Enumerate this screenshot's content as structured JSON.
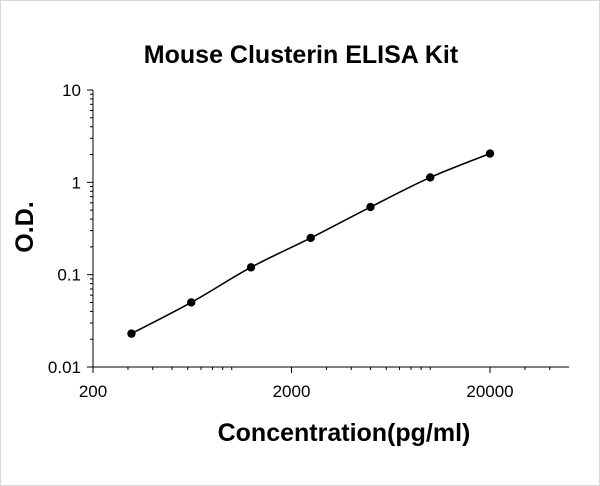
{
  "chart_data": {
    "type": "line",
    "title": "Mouse Clusterin ELISA Kit",
    "xlabel": "Concentration(pg/ml)",
    "ylabel": "O.D.",
    "xscale": "log",
    "yscale": "log",
    "xlim": [
      200,
      50000
    ],
    "ylim": [
      0.01,
      10
    ],
    "x_ticks": [
      {
        "value": 200,
        "label": "200"
      },
      {
        "value": 2000,
        "label": "2000"
      },
      {
        "value": 20000,
        "label": "20000"
      }
    ],
    "y_ticks": [
      {
        "value": 0.01,
        "label": "0.01"
      },
      {
        "value": 0.1,
        "label": "0.1"
      },
      {
        "value": 1,
        "label": "1"
      },
      {
        "value": 10,
        "label": "10"
      }
    ],
    "grid": false,
    "legend": "none",
    "series": [
      {
        "x": [
          312.5,
          625,
          1250,
          2500,
          5000,
          10000,
          20000
        ],
        "y": [
          0.023,
          0.05,
          0.12,
          0.25,
          0.54,
          1.13,
          2.05
        ],
        "color": "#000000",
        "marker": "circle"
      }
    ]
  }
}
